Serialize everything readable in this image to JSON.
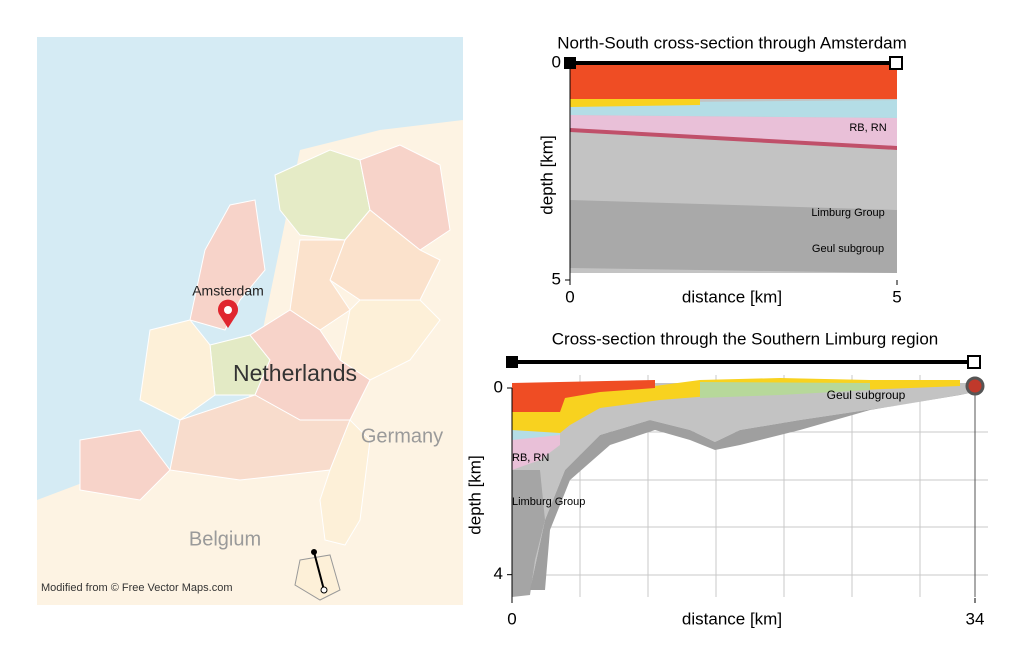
{
  "map": {
    "city": "Amsterdam",
    "country": "Netherlands",
    "neighbor_east": "Germany",
    "neighbor_south": "Belgium",
    "credit": "Modified from © Free Vector Maps.com"
  },
  "section1": {
    "title": "North-South cross-section through Amsterdam",
    "xlabel": "distance [km]",
    "ylabel": "depth [km]",
    "xlim": [
      0,
      5
    ],
    "ylim": [
      0,
      5
    ],
    "xticks": [
      0,
      5
    ],
    "yticks": [
      0,
      5
    ],
    "layer_labels": [
      "RB, RN",
      "Limburg Group",
      "Geul subgroup"
    ]
  },
  "section2": {
    "title": "Cross-section through the Southern Limburg region",
    "xlabel": "distance [km]",
    "ylabel": "depth [km]",
    "xlim": [
      0,
      34
    ],
    "ylim": [
      0,
      4.5
    ],
    "xticks": [
      0,
      34
    ],
    "yticks": [
      0,
      4
    ],
    "layer_labels": [
      "Geul subgroup",
      "RB, RN",
      "Limburg Group"
    ]
  }
}
